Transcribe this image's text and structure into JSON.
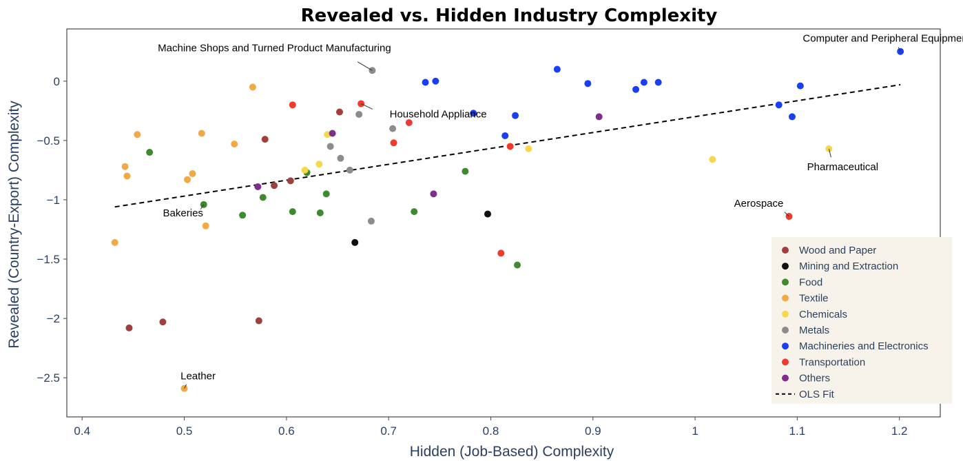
{
  "chart_data": {
    "type": "scatter",
    "title": "Revealed vs. Hidden Industry Complexity",
    "xlabel": "Hidden (Job-Based) Complexity",
    "ylabel": "Revealed (Country-Export) Complexity",
    "xlim": [
      0.385,
      1.24
    ],
    "ylim": [
      -2.83,
      0.44
    ],
    "xticks": [
      0.4,
      0.5,
      0.6,
      0.7,
      0.8,
      0.9,
      1,
      1.1,
      1.2
    ],
    "xtick_labels": [
      "0.4",
      "0.5",
      "0.6",
      "0.7",
      "0.8",
      "0.9",
      "1",
      "1.1",
      "1.2"
    ],
    "yticks": [
      0,
      -0.5,
      -1,
      -1.5,
      -2,
      -2.5
    ],
    "ytick_labels": [
      "0",
      "−0.5",
      "−1",
      "−1.5",
      "−2",
      "−2.5"
    ],
    "grid": false,
    "legend_position": "bottom-right",
    "series": [
      {
        "name": "Wood and Paper",
        "color": "#a0403c",
        "points": [
          [
            0.652,
            -0.26
          ],
          [
            0.579,
            -0.49
          ],
          [
            0.588,
            -0.88
          ],
          [
            0.604,
            -0.84
          ],
          [
            0.479,
            -2.03
          ],
          [
            0.573,
            -2.02
          ],
          [
            0.446,
            -2.08
          ]
        ]
      },
      {
        "name": "Mining and Extraction",
        "color": "#111111",
        "points": [
          [
            0.667,
            -1.36
          ],
          [
            0.797,
            -1.12
          ]
        ]
      },
      {
        "name": "Food",
        "color": "#3d8b2e",
        "points": [
          [
            0.466,
            -0.6
          ],
          [
            0.519,
            -1.04
          ],
          [
            0.557,
            -1.13
          ],
          [
            0.577,
            -0.98
          ],
          [
            0.606,
            -1.1
          ],
          [
            0.62,
            -0.77
          ],
          [
            0.633,
            -1.11
          ],
          [
            0.639,
            -0.95
          ],
          [
            0.725,
            -1.1
          ],
          [
            0.775,
            -0.76
          ],
          [
            0.826,
            -1.55
          ]
        ]
      },
      {
        "name": "Textile",
        "color": "#f1a946",
        "points": [
          [
            0.567,
            -0.05
          ],
          [
            0.454,
            -0.45
          ],
          [
            0.517,
            -0.44
          ],
          [
            0.549,
            -0.53
          ],
          [
            0.442,
            -0.72
          ],
          [
            0.444,
            -0.8
          ],
          [
            0.508,
            -0.78
          ],
          [
            0.503,
            -0.83
          ],
          [
            0.521,
            -1.22
          ],
          [
            0.432,
            -1.36
          ],
          [
            0.5,
            -2.59
          ]
        ]
      },
      {
        "name": "Chemicals",
        "color": "#f5d94a",
        "points": [
          [
            0.64,
            -0.45
          ],
          [
            0.618,
            -0.75
          ],
          [
            0.632,
            -0.7
          ],
          [
            0.837,
            -0.57
          ],
          [
            1.017,
            -0.66
          ],
          [
            1.131,
            -0.57
          ]
        ]
      },
      {
        "name": "Metals",
        "color": "#8c8c8c",
        "points": [
          [
            0.684,
            0.09
          ],
          [
            0.671,
            -0.28
          ],
          [
            0.704,
            -0.4
          ],
          [
            0.643,
            -0.55
          ],
          [
            0.653,
            -0.65
          ],
          [
            0.662,
            -0.75
          ],
          [
            0.683,
            -1.18
          ]
        ]
      },
      {
        "name": "Machineries and Electronics",
        "color": "#1a3ff0",
        "points": [
          [
            0.736,
            -0.01
          ],
          [
            0.746,
            0.0
          ],
          [
            0.865,
            0.1
          ],
          [
            0.895,
            -0.02
          ],
          [
            0.95,
            -0.01
          ],
          [
            0.964,
            -0.01
          ],
          [
            0.942,
            -0.07
          ],
          [
            0.783,
            -0.27
          ],
          [
            0.824,
            -0.29
          ],
          [
            0.814,
            -0.46
          ],
          [
            1.082,
            -0.2
          ],
          [
            1.095,
            -0.3
          ],
          [
            1.103,
            -0.04
          ],
          [
            1.201,
            0.25
          ]
        ]
      },
      {
        "name": "Transportation",
        "color": "#ee3b2b",
        "points": [
          [
            0.606,
            -0.2
          ],
          [
            0.673,
            -0.19
          ],
          [
            0.72,
            -0.35
          ],
          [
            0.705,
            -0.52
          ],
          [
            0.819,
            -0.55
          ],
          [
            0.81,
            -1.45
          ],
          [
            1.092,
            -1.14
          ]
        ]
      },
      {
        "name": "Others",
        "color": "#7e2f8e",
        "points": [
          [
            0.645,
            -0.44
          ],
          [
            0.572,
            -0.89
          ],
          [
            0.744,
            -0.95
          ],
          [
            0.906,
            -0.3
          ]
        ]
      }
    ],
    "ols_fit": {
      "name": "OLS Fit",
      "color": "#000000",
      "x": [
        0.432,
        1.201
      ],
      "y": [
        -1.06,
        -0.03
      ]
    },
    "annotations": [
      {
        "text": "Computer and Peripheral Equipment",
        "x": 1.201,
        "y": 0.25
      },
      {
        "text": "Machine Shops and Turned Product Manufacturing",
        "x": 0.684,
        "y": 0.09
      },
      {
        "text": "Household Appliance",
        "x": 0.673,
        "y": -0.19
      },
      {
        "text": "Pharmaceutical",
        "x": 1.131,
        "y": -0.57
      },
      {
        "text": "Aerospace",
        "x": 1.092,
        "y": -1.14
      },
      {
        "text": "Bakeries",
        "x": 0.519,
        "y": -1.04
      },
      {
        "text": "Leather",
        "x": 0.5,
        "y": -2.59
      }
    ]
  }
}
